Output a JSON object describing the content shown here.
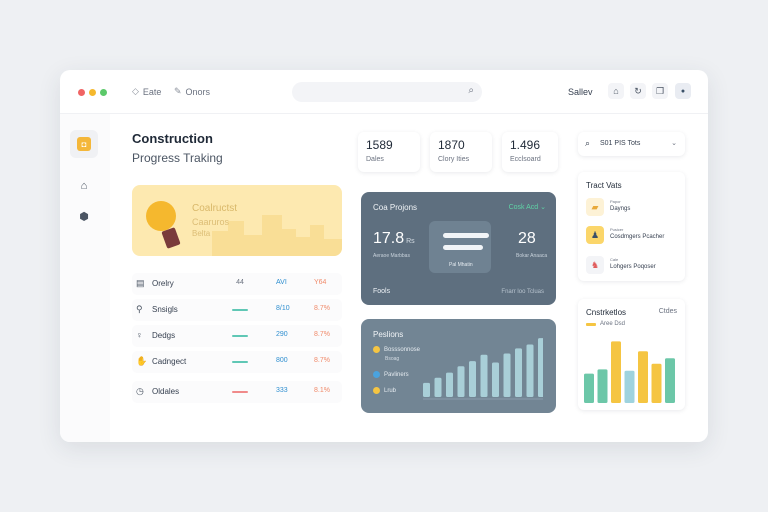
{
  "titlebar": {
    "menu": [
      {
        "icon": "diamond-icon",
        "glyph": "◇",
        "label": "Eate"
      },
      {
        "icon": "pen-icon",
        "glyph": "✎",
        "label": "Onors"
      }
    ],
    "user_label": "Sallev",
    "buttons": [
      {
        "icon": "home-icon",
        "glyph": "⌂"
      },
      {
        "icon": "refresh-icon",
        "glyph": "↻"
      },
      {
        "icon": "copy-icon",
        "glyph": "❐"
      },
      {
        "icon": "user-icon",
        "glyph": "●"
      }
    ]
  },
  "sidebar": {
    "items": [
      {
        "icon": "dashboard-icon",
        "glyph": "◘"
      },
      {
        "icon": "building-icon",
        "glyph": "⌂"
      },
      {
        "icon": "settings-icon",
        "glyph": "⬢"
      }
    ]
  },
  "main": {
    "title": "Construction",
    "subtitle": "Progress Traking"
  },
  "hero": {
    "line1": "Coalructst",
    "line2": "Caaruros",
    "line3": "Belta"
  },
  "table": {
    "rows": [
      {
        "icon": "layers-icon",
        "glyph": "▤",
        "name": "Orelry",
        "c1": "44",
        "bar": null,
        "c2": "AVI",
        "c3": "Y64"
      },
      {
        "icon": "tool-icon",
        "glyph": "⚲",
        "name": "Snsigls",
        "c1": "",
        "bar": "#5fc7b5",
        "c2": "8/10",
        "c3": "8.7%"
      },
      {
        "icon": "bulb-icon",
        "glyph": "♀",
        "name": "Dedgs",
        "c1": "",
        "bar": "#5fc7b5",
        "c2": "290",
        "c3": "8.7%"
      },
      {
        "icon": "thumb-icon",
        "glyph": "✋",
        "name": "Cadngect",
        "c1": "",
        "bar": "#5fc7b5",
        "c2": "800",
        "c3": "8.7%"
      },
      {
        "icon": "clock-icon",
        "glyph": "◷",
        "name": "Oldales",
        "c1": "",
        "bar": "#f08a8a",
        "c2": "333",
        "c3": "8.1%"
      }
    ]
  },
  "stats": [
    {
      "value": "1589",
      "label": "Dales"
    },
    {
      "value": "1870",
      "label": "Clory Ities"
    },
    {
      "value": "1.496",
      "label": "Ecclsoard"
    }
  ],
  "card_projects": {
    "title": "Coa Projons",
    "link": "Cosk Acd",
    "left_value": "17.8",
    "left_unit": "Rs",
    "left_caption": "Aeraoe Marbbas",
    "center_caption": "Pal Mhatin",
    "right_value": "28",
    "right_caption": "Bokar Anaaca",
    "footer_left": "Fools",
    "footer_right": "Fnarr loo Tcluas"
  },
  "card_positions": {
    "title": "Peslions",
    "legend": [
      {
        "label": "Bosssonnose",
        "label2": "Bsoag",
        "color": "#f5c542"
      },
      {
        "label": "Pavliners",
        "color": "#4aa3df"
      },
      {
        "label": "Lrub",
        "color": "#f5c542"
      }
    ],
    "bars": [
      0.22,
      0.3,
      0.38,
      0.48,
      0.56,
      0.66,
      0.54,
      0.68,
      0.76,
      0.82,
      0.92
    ],
    "bar_color": "#a9cfd8"
  },
  "search_mini": {
    "text": "S01 PIS Tots"
  },
  "tasks_panel": {
    "title": "Tract Vats",
    "tasks": [
      {
        "icon": "brick-icon",
        "glyph": "▰",
        "bg": "#fdf2d6",
        "fg": "#e8a93a",
        "small": "Papor",
        "label": "Dayngs"
      },
      {
        "icon": "worker-icon",
        "glyph": "♟",
        "bg": "#fbd66a",
        "fg": "#3a5068",
        "small": "Pusicer",
        "label": "Cosdmgers Pcacher"
      },
      {
        "icon": "person-icon",
        "glyph": "♞",
        "bg": "#f3f4f7",
        "fg": "#e05b5b",
        "small": "Cale",
        "label": "Lohgers Poqoser"
      }
    ]
  },
  "chart_panel": {
    "title": "Cnstrketlos",
    "right": "Ctdes",
    "legend": "Aree Dsd"
  },
  "chart_data": {
    "type": "bar",
    "series": [
      {
        "values": [
          0.42,
          0.48,
          0.88,
          0.46,
          0.74,
          0.56,
          0.64
        ]
      }
    ],
    "colors": [
      "#6cc7a8",
      "#6cc7a8",
      "#f5c542",
      "#9fd3de",
      "#f5c542",
      "#f5c542",
      "#6cc7a8"
    ]
  }
}
